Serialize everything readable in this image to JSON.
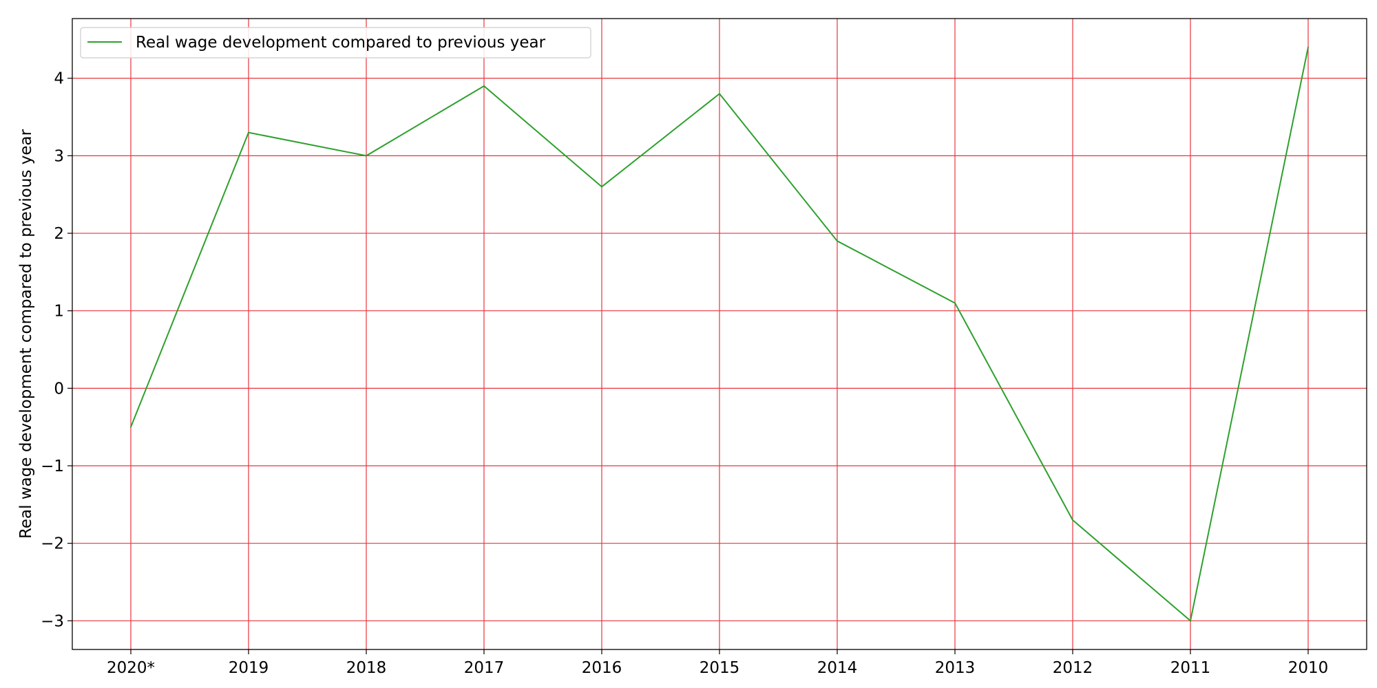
{
  "chart_data": {
    "type": "line",
    "categories": [
      "2020*",
      "2019",
      "2018",
      "2017",
      "2016",
      "2015",
      "2014",
      "2013",
      "2012",
      "2011",
      "2010"
    ],
    "series": [
      {
        "name": "Real wage development compared to previous year",
        "values": [
          -0.5,
          3.3,
          3.0,
          3.9,
          2.6,
          3.8,
          1.9,
          1.1,
          -1.7,
          -3.0,
          4.4
        ],
        "color": "#2ca02c"
      }
    ],
    "title": "",
    "xlabel": "",
    "ylabel": "Real wage development compared to previous year",
    "ylim": [
      -3.37,
      4.77
    ],
    "yticks": [
      -3,
      -2,
      -1,
      0,
      1,
      2,
      3,
      4
    ],
    "ytick_labels": [
      "−3",
      "−2",
      "−1",
      "0",
      "1",
      "2",
      "3",
      "4"
    ],
    "grid": true,
    "grid_color": "#e8343c",
    "legend_position": "top-left"
  }
}
